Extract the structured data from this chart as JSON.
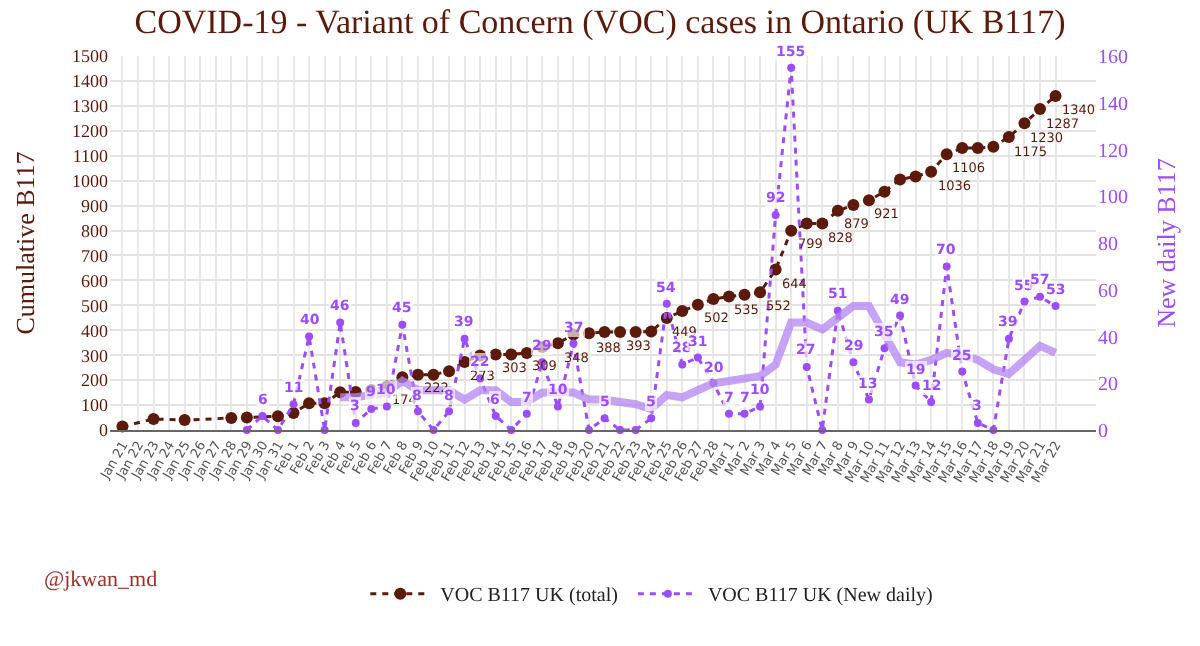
{
  "chart_data": {
    "type": "line",
    "title": "COVID-19 - Variant of Concern (VOC) cases in Ontario (UK B117)",
    "ylabel": "Cumulative B117",
    "y2label": "New daily B117",
    "categories": [
      "Jan 21",
      "Jan 22",
      "Jan 23",
      "Jan 24",
      "Jan 25",
      "Jan 26",
      "Jan 27",
      "Jan 28",
      "Jan 29",
      "Jan 30",
      "Jan 31",
      "Feb 1",
      "Feb 2",
      "Feb 3",
      "Feb 4",
      "Feb 5",
      "Feb 6",
      "Feb 7",
      "Feb 8",
      "Feb 9",
      "Feb 10",
      "Feb 11",
      "Feb 12",
      "Feb 13",
      "Feb 14",
      "Feb 15",
      "Feb 16",
      "Feb 17",
      "Feb 18",
      "Feb 19",
      "Feb 20",
      "Feb 21",
      "Feb 22",
      "Feb 23",
      "Feb 24",
      "Feb 25",
      "Feb 26",
      "Feb 27",
      "Feb 28",
      "Mar 1",
      "Mar 2",
      "Mar 3",
      "Mar 4",
      "Mar 5",
      "Mar 6",
      "Mar 7",
      "Mar 8",
      "Mar 9",
      "Mar 10",
      "Mar 11",
      "Mar 12",
      "Mar 13",
      "Mar 14",
      "Mar 15",
      "Mar 16",
      "Mar 17",
      "Mar 18",
      "Mar 19",
      "Mar 20",
      "Mar 21",
      "Mar 22"
    ],
    "series": [
      {
        "name": "VOC B117 UK (total)",
        "color": "#5c1a0b",
        "line_style": "dotted",
        "marker": "circle",
        "value_labels": [
          null,
          null,
          null,
          null,
          null,
          null,
          null,
          null,
          null,
          null,
          null,
          null,
          null,
          null,
          null,
          null,
          null,
          "174",
          null,
          "222",
          null,
          null,
          "273",
          null,
          "303",
          null,
          "309",
          null,
          "348",
          null,
          "388",
          null,
          "393",
          null,
          null,
          "449",
          null,
          "502",
          null,
          "535",
          null,
          "552",
          "644",
          "799",
          null,
          "828",
          "879",
          null,
          "921",
          null,
          null,
          null,
          "1036",
          "1106",
          null,
          null,
          null,
          "1175",
          "1230",
          "1287",
          "1340"
        ],
        "values": [
          14,
          null,
          44,
          null,
          40,
          null,
          null,
          48,
          50,
          null,
          55,
          68,
          107,
          107,
          151,
          152,
          160,
          174,
          212,
          222,
          222,
          236,
          273,
          299,
          303,
          303,
          309,
          333,
          348,
          383,
          388,
          393,
          393,
          393,
          395,
          449,
          477,
          502,
          525,
          535,
          542,
          552,
          644,
          799,
          828,
          828,
          879,
          902,
          921,
          956,
          1005,
          1017,
          1036,
          1106,
          1131,
          1131,
          1136,
          1175,
          1230,
          1287,
          1340
        ]
      },
      {
        "name": "VOC B117 UK (New daily)",
        "color": "#9b4dff",
        "axis": "y2",
        "line_style": "dotted",
        "marker": "circle",
        "values": [
          null,
          null,
          null,
          null,
          null,
          null,
          null,
          null,
          0,
          6,
          0,
          11,
          40,
          0,
          46,
          3,
          9,
          10,
          45,
          8,
          0,
          8,
          39,
          22,
          6,
          0,
          7,
          29,
          10,
          37,
          0,
          5,
          0,
          0,
          5,
          54,
          28,
          31,
          20,
          7,
          7,
          10,
          92,
          155,
          27,
          0,
          51,
          29,
          13,
          35,
          49,
          19,
          12,
          70,
          25,
          3,
          0,
          39,
          55,
          57,
          53
        ],
        "value_labels": [
          null,
          null,
          null,
          null,
          null,
          null,
          null,
          null,
          null,
          "6",
          null,
          "11",
          "40",
          null,
          "46",
          "3",
          "9",
          "10",
          "45",
          "8",
          null,
          "8",
          "39",
          "22",
          "6",
          null,
          "7",
          "29",
          "10",
          "37",
          null,
          "5",
          null,
          null,
          "5",
          "54",
          "28",
          "31",
          "20",
          "7",
          "7",
          "10",
          "92",
          "155",
          "27",
          null,
          "51",
          "29",
          "13",
          "35",
          "49",
          "19",
          "12",
          "70",
          "25",
          "3",
          null,
          "39",
          "55",
          "57",
          "53"
        ]
      },
      {
        "color": "#b385f5",
        "axis": "y2",
        "line_style": "solid",
        "marker": "none",
        "values": [
          null,
          null,
          null,
          null,
          null,
          null,
          null,
          null,
          null,
          null,
          null,
          null,
          null,
          null,
          14,
          14,
          15,
          16,
          21,
          17,
          17,
          17,
          13,
          17,
          17,
          12,
          12,
          16,
          16,
          16,
          13,
          13,
          12,
          11,
          9,
          15,
          14,
          17,
          20,
          21,
          22,
          23,
          28,
          46,
          46,
          43,
          48,
          53,
          53,
          41,
          29,
          28,
          30,
          33,
          32,
          30,
          26,
          24,
          30,
          36,
          33
        ]
      }
    ],
    "ylim": [
      0,
      1500
    ],
    "yticks": [
      0,
      100,
      200,
      300,
      400,
      500,
      600,
      700,
      800,
      900,
      1000,
      1100,
      1200,
      1300,
      1400,
      1500
    ],
    "y2lim": [
      0,
      160
    ],
    "y2ticks": [
      0,
      20,
      40,
      60,
      80,
      100,
      120,
      140,
      160
    ],
    "grid": true,
    "legend": "bottom",
    "annotations": [
      "@jkwan_md"
    ]
  }
}
